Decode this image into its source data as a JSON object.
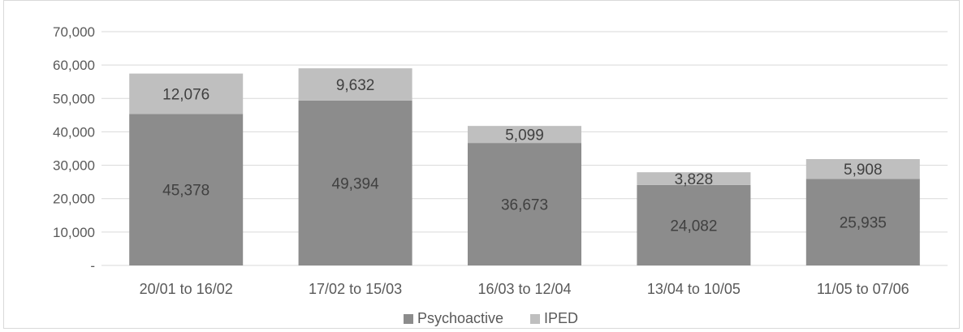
{
  "chart_data": {
    "type": "bar",
    "stacked": true,
    "categories": [
      "20/01 to 16/02",
      "17/02 to 15/03",
      "16/03 to 12/04",
      "13/04 to 10/05",
      "11/05 to 07/06"
    ],
    "series": [
      {
        "name": "Psychoactive",
        "values": [
          45378,
          49394,
          36673,
          24082,
          25935
        ],
        "labels": [
          "45,378",
          "49,394",
          "36,673",
          "24,082",
          "25,935"
        ],
        "color": "#8c8c8c"
      },
      {
        "name": "IPED",
        "values": [
          12076,
          9632,
          5099,
          3828,
          5908
        ],
        "labels": [
          "12,076",
          "9,632",
          "5,099",
          "3,828",
          "5,908"
        ],
        "color": "#bfbfbf"
      }
    ],
    "ylim": [
      0,
      70000
    ],
    "yticks": [
      0,
      10000,
      20000,
      30000,
      40000,
      50000,
      60000,
      70000
    ],
    "ytick_labels": [
      "-",
      "10,000",
      "20,000",
      "30,000",
      "40,000",
      "50,000",
      "60,000",
      "70,000"
    ],
    "grid": true,
    "legend_position": "bottom",
    "title": "",
    "xlabel": "",
    "ylabel": ""
  }
}
